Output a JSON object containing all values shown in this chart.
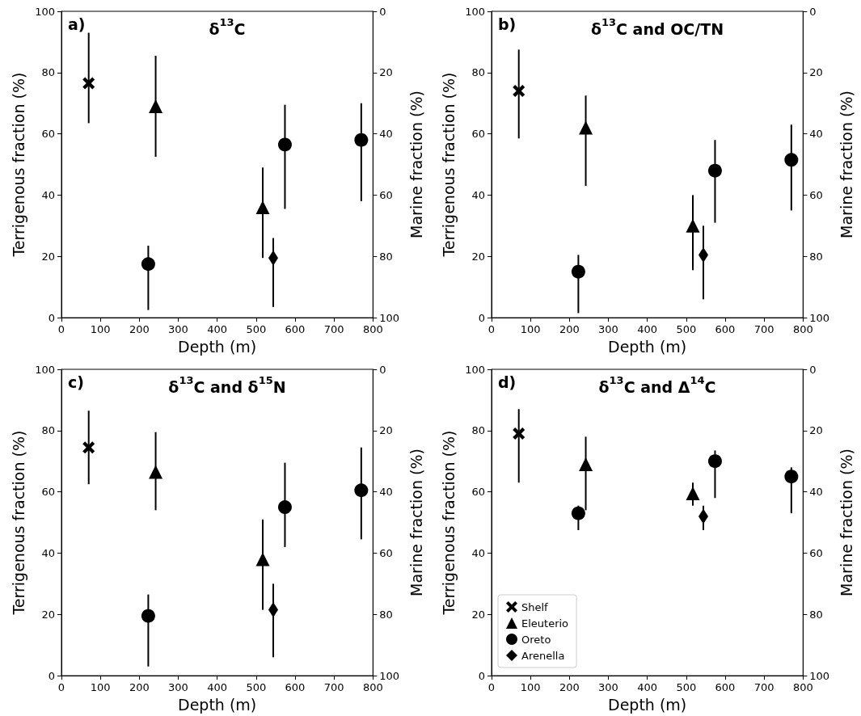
{
  "chart_data": [
    {
      "type": "scatter",
      "title": "δ$^{13}$C",
      "xlabel": "Depth (m)",
      "ylabel": "Terrigenous fraction (%)",
      "y2label": "Marine fraction (%)",
      "annotations": [
        "a)"
      ],
      "xlim": [
        0,
        800
      ],
      "xticks": [
        0,
        100,
        200,
        300,
        400,
        500,
        600,
        700,
        800
      ],
      "ylim": [
        0,
        100
      ],
      "yticks": [
        0,
        20,
        40,
        60,
        80,
        100
      ],
      "y2lim": [
        100,
        0
      ],
      "y2ticks": [
        0,
        20,
        40,
        60,
        80,
        100
      ],
      "grid": false,
      "legend": false,
      "series": [
        {
          "color": "#000000",
          "marker": "cross",
          "x": [
            70
          ],
          "values": [
            76.5
          ],
          "errors": [
            [
              63.5,
              93
            ]
          ]
        },
        {
          "color": "#000000",
          "marker": "triangle",
          "x": [
            242,
            517
          ],
          "values": [
            69,
            36
          ],
          "errors": [
            [
              52.5,
              85.5
            ],
            [
              19.5,
              49
            ]
          ]
        },
        {
          "color": "#000000",
          "marker": "circle",
          "x": [
            223,
            574,
            770
          ],
          "values": [
            17.5,
            56.5,
            58
          ],
          "errors": [
            [
              2.5,
              23.5
            ],
            [
              35.5,
              69.5
            ],
            [
              38,
              70
            ]
          ]
        },
        {
          "color": "#000000",
          "marker": "diamond",
          "x": [
            544
          ],
          "values": [
            19.5
          ],
          "errors": [
            [
              3.5,
              26
            ]
          ]
        }
      ]
    },
    {
      "type": "scatter",
      "title": "δ$^{13}$C and OC/TN",
      "xlabel": "Depth (m)",
      "ylabel": "Terrigenous fraction (%)",
      "y2label": "Marine fraction (%)",
      "annotations": [
        "b)"
      ],
      "xlim": [
        0,
        800
      ],
      "xticks": [
        0,
        100,
        200,
        300,
        400,
        500,
        600,
        700,
        800
      ],
      "ylim": [
        0,
        100
      ],
      "yticks": [
        0,
        20,
        40,
        60,
        80,
        100
      ],
      "y2lim": [
        100,
        0
      ],
      "y2ticks": [
        0,
        20,
        40,
        60,
        80,
        100
      ],
      "grid": false,
      "legend": false,
      "series": [
        {
          "color": "#000000",
          "marker": "cross",
          "x": [
            70
          ],
          "values": [
            74
          ],
          "errors": [
            [
              58.5,
              87.5
            ]
          ]
        },
        {
          "color": "#000000",
          "marker": "triangle",
          "x": [
            242,
            517
          ],
          "values": [
            62,
            30
          ],
          "errors": [
            [
              43,
              72.5
            ],
            [
              15.5,
              40
            ]
          ]
        },
        {
          "color": "#000000",
          "marker": "circle",
          "x": [
            223,
            574,
            770
          ],
          "values": [
            15,
            48,
            51.5
          ],
          "errors": [
            [
              1.5,
              20.5
            ],
            [
              31,
              58
            ],
            [
              35,
              63
            ]
          ]
        },
        {
          "color": "#000000",
          "marker": "diamond",
          "x": [
            544
          ],
          "values": [
            20.5
          ],
          "errors": [
            [
              6,
              30
            ]
          ]
        }
      ]
    },
    {
      "type": "scatter",
      "title": "δ$^{13}$C and δ$^{15}$N",
      "xlabel": "Depth (m)",
      "ylabel": "Terrigenous fraction (%)",
      "y2label": "Marine fraction (%)",
      "annotations": [
        "c)"
      ],
      "xlim": [
        0,
        800
      ],
      "xticks": [
        0,
        100,
        200,
        300,
        400,
        500,
        600,
        700,
        800
      ],
      "ylim": [
        0,
        100
      ],
      "yticks": [
        0,
        20,
        40,
        60,
        80,
        100
      ],
      "y2lim": [
        100,
        0
      ],
      "y2ticks": [
        0,
        20,
        40,
        60,
        80,
        100
      ],
      "grid": false,
      "legend": false,
      "series": [
        {
          "color": "#000000",
          "marker": "cross",
          "x": [
            70
          ],
          "values": [
            74.5
          ],
          "errors": [
            [
              62.5,
              86.5
            ]
          ]
        },
        {
          "color": "#000000",
          "marker": "triangle",
          "x": [
            242,
            517
          ],
          "values": [
            66.5,
            38
          ],
          "errors": [
            [
              54,
              79.5
            ],
            [
              21.5,
              51
            ]
          ]
        },
        {
          "color": "#000000",
          "marker": "circle",
          "x": [
            223,
            574,
            770
          ],
          "values": [
            19.5,
            55,
            60.5
          ],
          "errors": [
            [
              3,
              26.5
            ],
            [
              42,
              69.5
            ],
            [
              44.5,
              74.5
            ]
          ]
        },
        {
          "color": "#000000",
          "marker": "diamond",
          "x": [
            544
          ],
          "values": [
            21.5
          ],
          "errors": [
            [
              6,
              30
            ]
          ]
        }
      ]
    },
    {
      "type": "scatter",
      "title": "δ$^{13}$C and Δ$^{14}$C",
      "xlabel": "Depth (m)",
      "ylabel": "Terrigenous fraction (%)",
      "y2label": "Marine fraction (%)",
      "annotations": [
        "d)"
      ],
      "xlim": [
        0,
        800
      ],
      "xticks": [
        0,
        100,
        200,
        300,
        400,
        500,
        600,
        700,
        800
      ],
      "ylim": [
        0,
        100
      ],
      "yticks": [
        0,
        20,
        40,
        60,
        80,
        100
      ],
      "y2lim": [
        100,
        0
      ],
      "y2ticks": [
        0,
        20,
        40,
        60,
        80,
        100
      ],
      "grid": false,
      "legend": "bottom left",
      "series": [
        {
          "name": "Shelf",
          "color": "#000000",
          "marker": "cross",
          "x": [
            70
          ],
          "values": [
            79
          ],
          "errors": [
            [
              63,
              87
            ]
          ]
        },
        {
          "name": "Eleuterio",
          "color": "#000000",
          "marker": "triangle",
          "x": [
            242,
            517
          ],
          "values": [
            69,
            59.5
          ],
          "errors": [
            [
              54,
              78
            ],
            [
              55.5,
              63
            ]
          ]
        },
        {
          "name": "Oreto",
          "color": "#000000",
          "marker": "circle",
          "x": [
            223,
            574,
            770
          ],
          "values": [
            53,
            70,
            65
          ],
          "errors": [
            [
              47.5,
              55.5
            ],
            [
              58,
              73.5
            ],
            [
              53,
              68
            ]
          ]
        },
        {
          "name": "Arenella",
          "color": "#000000",
          "marker": "diamond",
          "x": [
            544
          ],
          "values": [
            52
          ],
          "errors": [
            [
              47.5,
              55.5
            ]
          ]
        }
      ]
    }
  ]
}
